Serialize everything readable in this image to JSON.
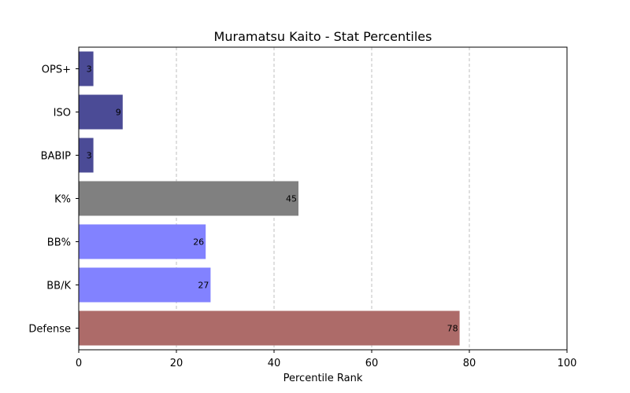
{
  "chart_data": {
    "type": "bar",
    "orientation": "horizontal",
    "title": "Muramatsu Kaito - Stat Percentiles",
    "xlabel": "Percentile Rank",
    "ylabel": "",
    "xlim": [
      0,
      100
    ],
    "xticks": [
      0,
      20,
      40,
      60,
      80,
      100
    ],
    "grid": "x-dashed",
    "categories": [
      "OPS+",
      "ISO",
      "BABIP",
      "K%",
      "BB%",
      "BB/K",
      "Defense"
    ],
    "values": [
      3,
      9,
      3,
      45,
      26,
      27,
      78
    ],
    "colors": [
      "#4b4b96",
      "#4b4b96",
      "#4b4b96",
      "#808080",
      "#8282ff",
      "#8282ff",
      "#ad6b69"
    ]
  }
}
